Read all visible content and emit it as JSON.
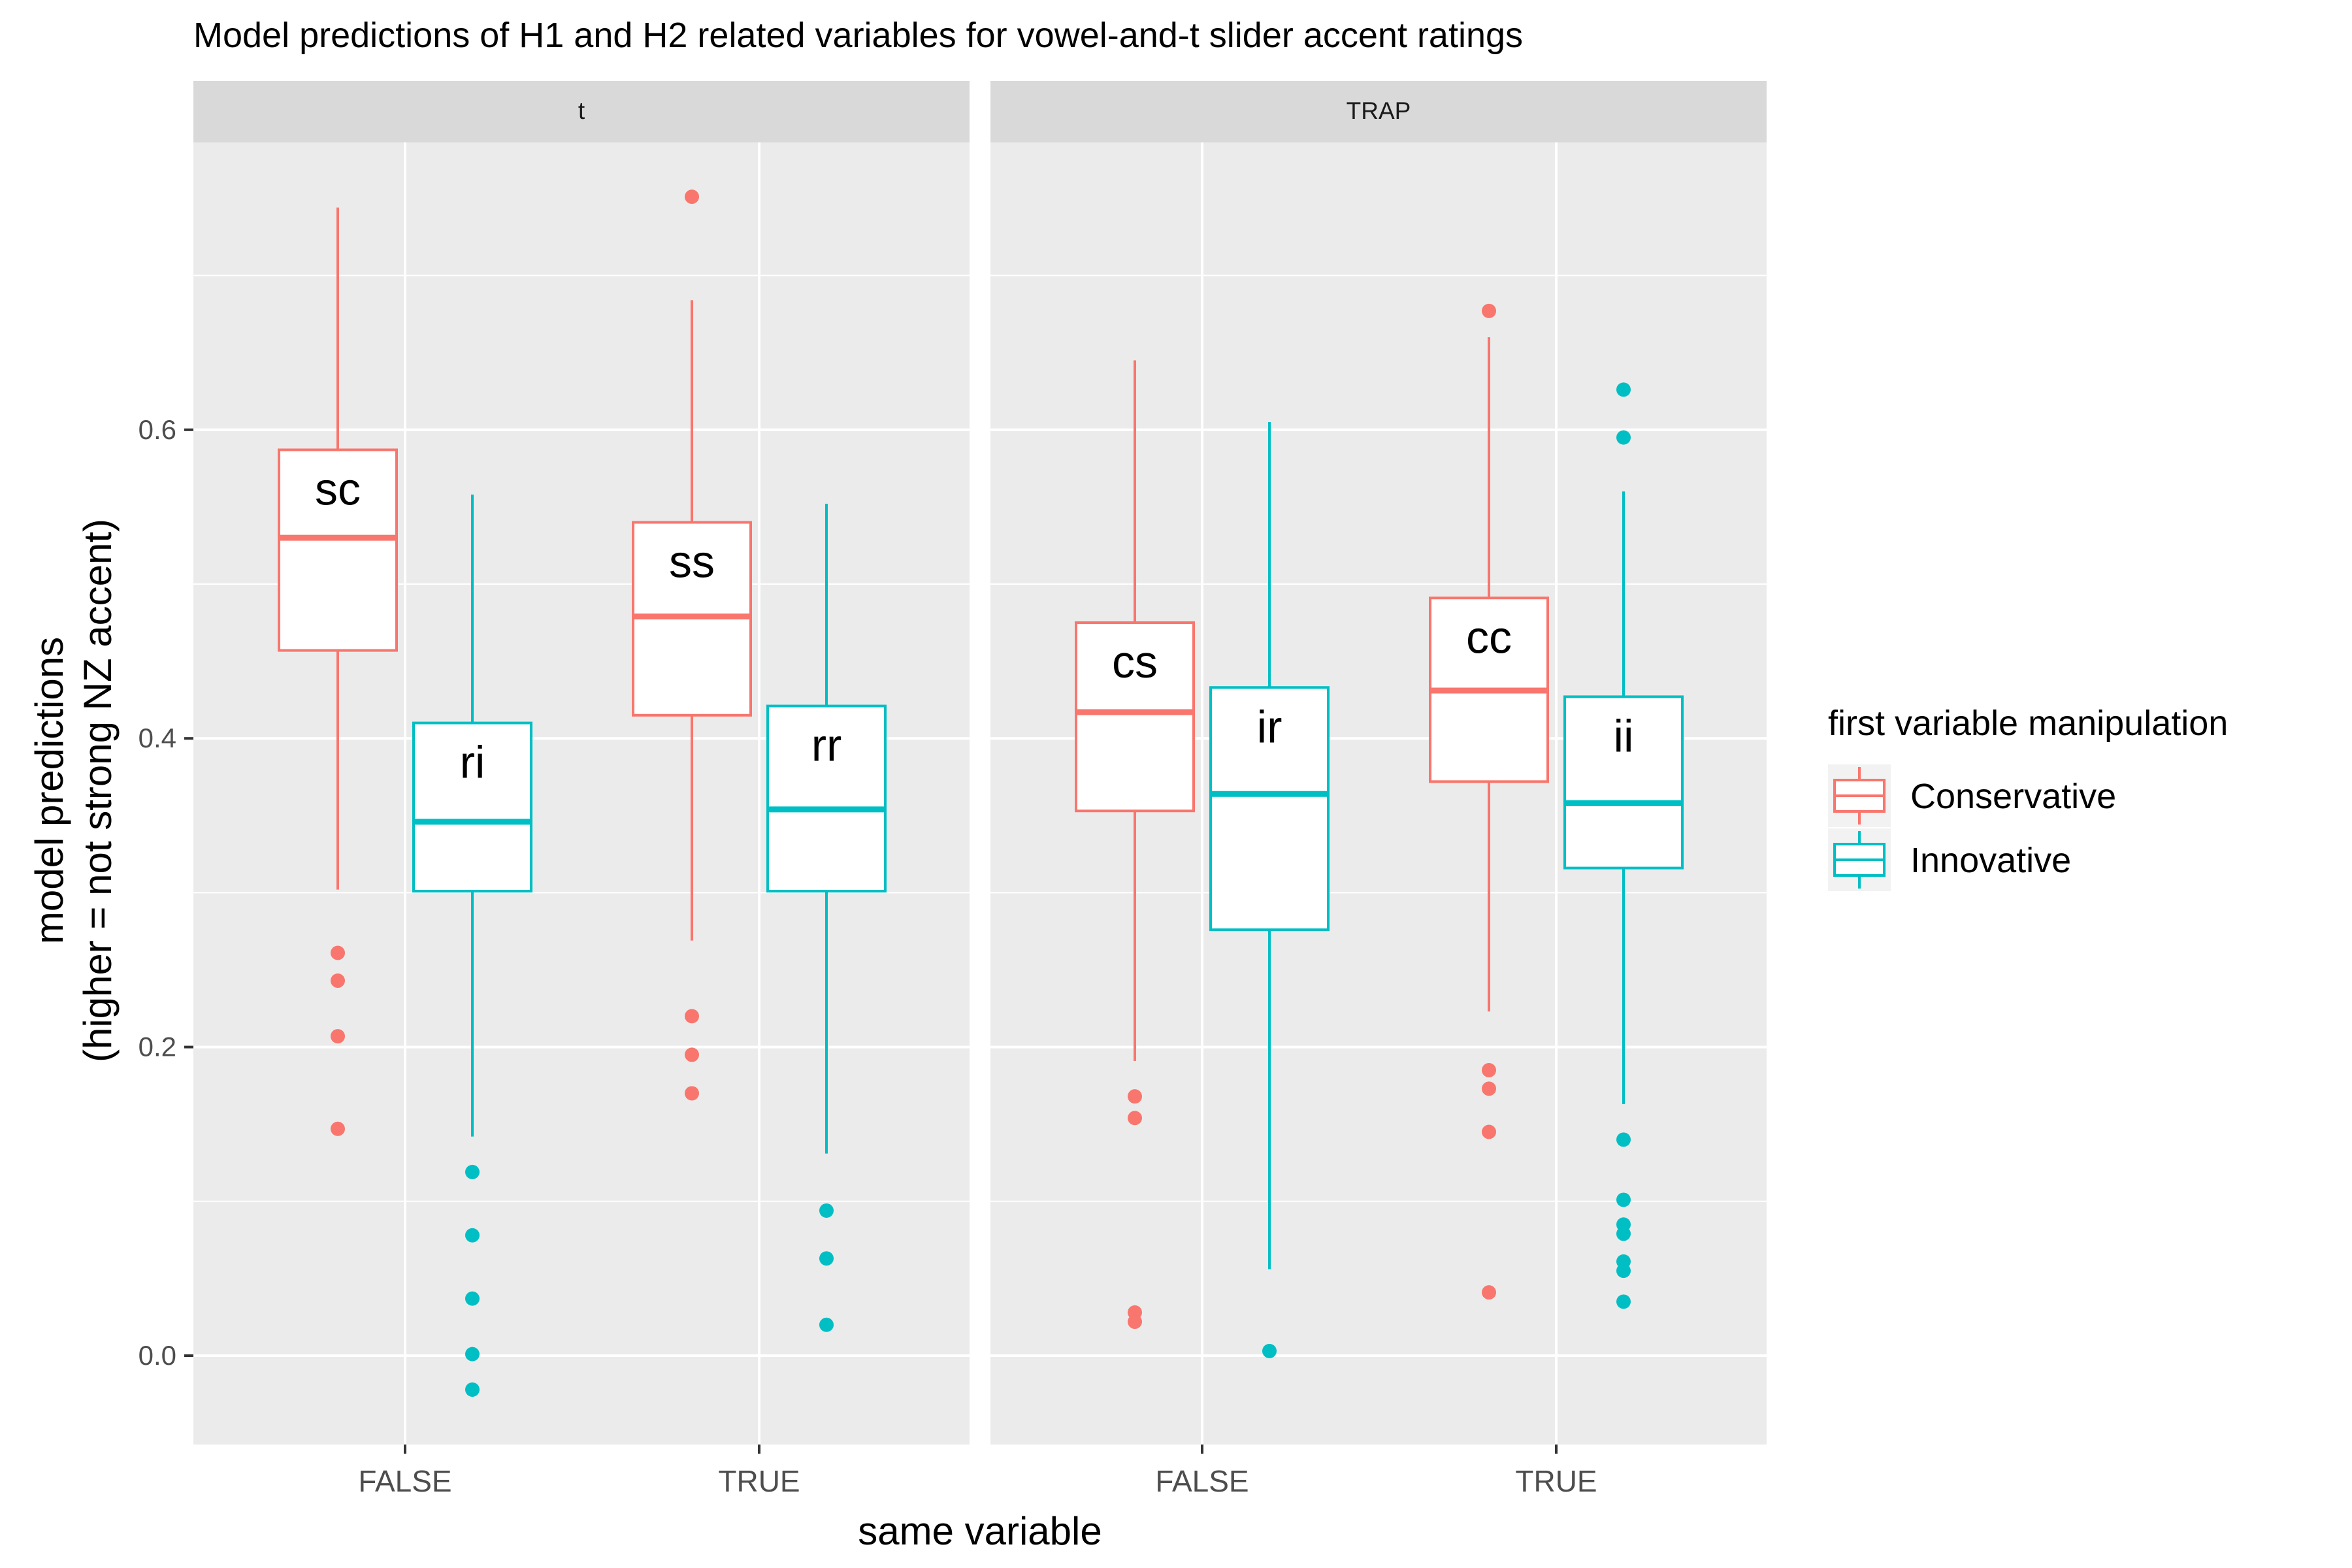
{
  "chart_data": {
    "type": "boxplot",
    "title": "Model predictions of H1 and H2 related variables for vowel-and-t slider accent ratings",
    "xlabel": "same variable",
    "ylabel_line1": "model predictions",
    "ylabel_line2": "(higher = not strong NZ accent)",
    "y_ticks": [
      "0.0",
      "0.2",
      "0.4",
      "0.6"
    ],
    "y_tick_values": [
      0.0,
      0.2,
      0.4,
      0.6
    ],
    "ylim": [
      -0.062,
      0.795
    ],
    "grid": true,
    "x_categories": [
      "FALSE",
      "TRUE"
    ],
    "facets": [
      "t",
      "TRAP"
    ],
    "legend": {
      "title": "first variable manipulation",
      "position": "right",
      "entries": [
        {
          "name": "Conservative",
          "color": "#F8766D"
        },
        {
          "name": "Innovative",
          "color": "#00BFC4"
        }
      ]
    },
    "boxes": [
      {
        "facet": 0,
        "x": 0,
        "group": 0,
        "label": "sc",
        "whisker_low": 0.302,
        "q1": 0.457,
        "median": 0.53,
        "q3": 0.587,
        "whisker_high": 0.744,
        "outliers": [
          0.261,
          0.243,
          0.207,
          0.147
        ]
      },
      {
        "facet": 0,
        "x": 0,
        "group": 1,
        "label": "ri",
        "whisker_low": 0.142,
        "q1": 0.301,
        "median": 0.346,
        "q3": 0.41,
        "whisker_high": 0.558,
        "outliers": [
          0.119,
          0.078,
          0.037,
          0.001,
          -0.022
        ]
      },
      {
        "facet": 0,
        "x": 1,
        "group": 0,
        "label": "ss",
        "whisker_low": 0.269,
        "q1": 0.415,
        "median": 0.479,
        "q3": 0.54,
        "whisker_high": 0.684,
        "outliers": [
          0.751,
          0.22,
          0.195,
          0.17
        ]
      },
      {
        "facet": 0,
        "x": 1,
        "group": 1,
        "label": "rr",
        "whisker_low": 0.131,
        "q1": 0.301,
        "median": 0.354,
        "q3": 0.421,
        "whisker_high": 0.552,
        "outliers": [
          0.094,
          0.063,
          0.02
        ]
      },
      {
        "facet": 1,
        "x": 0,
        "group": 0,
        "label": "cs",
        "whisker_low": 0.191,
        "q1": 0.353,
        "median": 0.417,
        "q3": 0.475,
        "whisker_high": 0.645,
        "outliers": [
          0.168,
          0.154,
          0.028,
          0.022
        ]
      },
      {
        "facet": 1,
        "x": 0,
        "group": 1,
        "label": "ir",
        "whisker_low": 0.056,
        "q1": 0.276,
        "median": 0.364,
        "q3": 0.433,
        "whisker_high": 0.605,
        "outliers": [
          0.003
        ]
      },
      {
        "facet": 1,
        "x": 1,
        "group": 0,
        "label": "cc",
        "whisker_low": 0.223,
        "q1": 0.372,
        "median": 0.431,
        "q3": 0.491,
        "whisker_high": 0.66,
        "outliers": [
          0.677,
          0.185,
          0.173,
          0.145,
          0.041
        ]
      },
      {
        "facet": 1,
        "x": 1,
        "group": 1,
        "label": "ii",
        "whisker_low": 0.163,
        "q1": 0.316,
        "median": 0.358,
        "q3": 0.427,
        "whisker_high": 0.56,
        "outliers": [
          0.626,
          0.595,
          0.14,
          0.101,
          0.085,
          0.079,
          0.061,
          0.055,
          0.035
        ]
      }
    ]
  }
}
